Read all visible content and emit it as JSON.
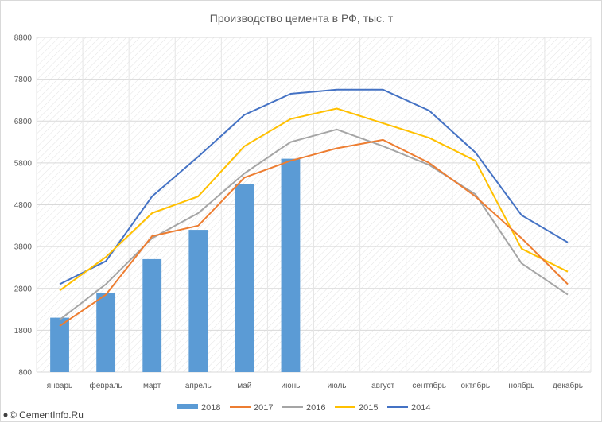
{
  "chart_data": {
    "type": "bar",
    "title": "Производство цемента в РФ, тыс. т",
    "categories": [
      "январь",
      "февраль",
      "март",
      "апрель",
      "май",
      "июнь",
      "июль",
      "август",
      "сентябрь",
      "октябрь",
      "ноябрь",
      "декабрь"
    ],
    "ylim": [
      800,
      8800
    ],
    "yticks": [
      "800",
      "1800",
      "2800",
      "3800",
      "4800",
      "5800",
      "6800",
      "7800",
      "8800"
    ],
    "grid": true,
    "legend_position": "bottom",
    "series": [
      {
        "name": "2018",
        "type": "bar",
        "color": "#5b9bd5",
        "values": [
          2100,
          2700,
          3500,
          4200,
          5300,
          5900,
          null,
          null,
          null,
          null,
          null,
          null
        ]
      },
      {
        "name": "2017",
        "type": "line",
        "color": "#ed7d31",
        "values": [
          1900,
          2650,
          4050,
          4300,
          5450,
          5850,
          6150,
          6350,
          5800,
          5000,
          4000,
          2900
        ]
      },
      {
        "name": "2016",
        "type": "line",
        "color": "#a5a5a5",
        "values": [
          2050,
          2900,
          4000,
          4600,
          5550,
          6300,
          6600,
          6200,
          5750,
          5050,
          3400,
          2650
        ]
      },
      {
        "name": "2015",
        "type": "line",
        "color": "#ffc000",
        "values": [
          2750,
          3550,
          4600,
          5000,
          6200,
          6850,
          7100,
          6750,
          6400,
          5850,
          3750,
          3200
        ]
      },
      {
        "name": "2014",
        "type": "line",
        "color": "#4472c4",
        "values": [
          2900,
          3450,
          5000,
          5950,
          6950,
          7450,
          7550,
          7550,
          7050,
          6050,
          4550,
          3900
        ]
      }
    ]
  },
  "watermark": "© CementInfo.Ru"
}
